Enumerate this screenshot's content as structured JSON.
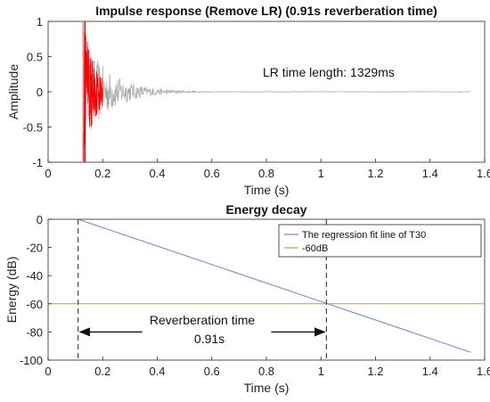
{
  "chart_data": [
    {
      "type": "line",
      "title": "Impulse response (Remove LR) (0.91s reverberation time)",
      "xlabel": "Time (s)",
      "ylabel": "Amplitude",
      "xlim": [
        0,
        1.6
      ],
      "ylim": [
        -1,
        1
      ],
      "xticks": [
        "0",
        "0.2",
        "0.4",
        "0.6",
        "0.8",
        "1",
        "1.2",
        "1.4",
        "1.6"
      ],
      "yticks": [
        "1",
        "0.5",
        "0",
        "-0.5",
        "-1"
      ],
      "annotation": "LR time length: 1329ms",
      "series": [
        {
          "color": "#a8a8a8",
          "x_range": [
            0.13,
            1.55
          ],
          "envelope_peak": 0.75,
          "decay_end": 0.6
        },
        {
          "color": "#ff0000",
          "x_range": [
            0.13,
            0.2
          ],
          "envelope_peak": 1.0
        }
      ],
      "markers": [
        {
          "x": 0.135,
          "color": "#8b0000"
        },
        {
          "x": 0.128,
          "color": "#d08080"
        }
      ]
    },
    {
      "type": "line",
      "title": "Energy decay",
      "xlabel": "Time (s)",
      "ylabel": "Energy (dB)",
      "xlim": [
        0,
        1.6
      ],
      "ylim": [
        -100,
        0
      ],
      "xticks": [
        "0",
        "0.2",
        "0.4",
        "0.6",
        "0.8",
        "1",
        "1.2",
        "1.4",
        "1.6"
      ],
      "yticks": [
        "0",
        "-20",
        "-40",
        "-60",
        "-80",
        "-100"
      ],
      "series": [
        {
          "name": "The regression fit line of T30",
          "color": "#6f84c8",
          "x": [
            0.11,
            1.55
          ],
          "y": [
            0,
            -94.5
          ]
        },
        {
          "name": "-60dB",
          "color": "#b8a24a",
          "x": [
            0,
            1.6
          ],
          "y": [
            -60,
            -60
          ]
        }
      ],
      "vlines": [
        0.11,
        1.02
      ],
      "arrow_y": -80,
      "arrow_label": "Reverberation time",
      "arrow_value": "0.91s",
      "legend": "top-right"
    }
  ]
}
